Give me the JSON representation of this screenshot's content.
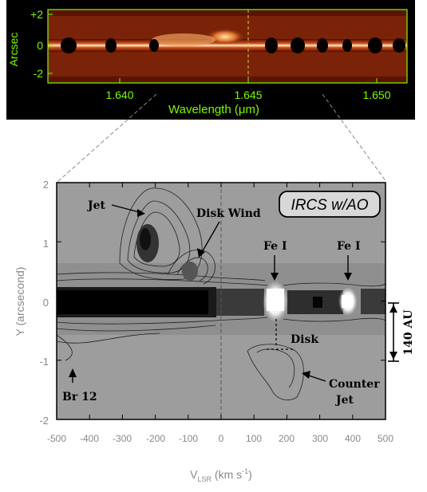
{
  "top_panel": {
    "ylabel": "Arcsec",
    "yticks": [
      "+2",
      "0",
      "-2"
    ],
    "xticks": [
      "1.640",
      "1.645",
      "1.650"
    ],
    "xlabel": "Wavelength (μm)",
    "label_color": "#7cfc00"
  },
  "bottom_panel": {
    "ylabel": "Y (arcsecond)",
    "yticks": [
      "2",
      "1",
      "0",
      "-1",
      "-2"
    ],
    "xticks": [
      "-500",
      "-400",
      "-300",
      "-200",
      "-100",
      "0",
      "100",
      "200",
      "300",
      "400",
      "500"
    ],
    "xlabel": "V",
    "xlabel_sub": "LSR",
    "xlabel_unit": " (km s",
    "xlabel_sup": "-1",
    "xlabel_close": ")",
    "instrument_label": "IRCS w/AO"
  },
  "annotations": {
    "jet": "Jet",
    "disk_wind": "Disk Wind",
    "fe1_left": "Fe I",
    "fe1_right": "Fe I",
    "disk": "Disk",
    "counter_jet_line1": "Counter",
    "counter_jet_line2": "Jet",
    "br12": "Br 12",
    "scale_bar": "140 AU"
  }
}
